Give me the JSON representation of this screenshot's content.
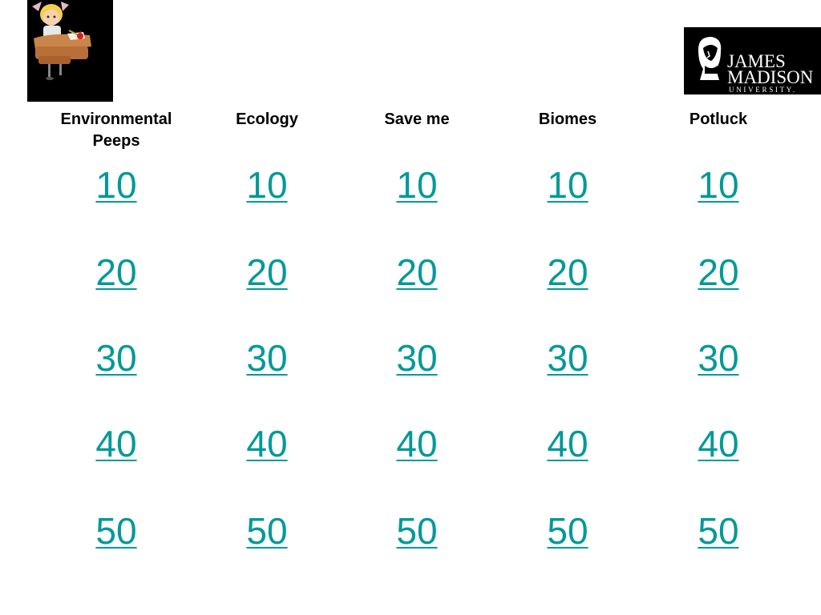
{
  "logo": {
    "line1": "JAMES",
    "line2": "MADISON",
    "line3": "UNIVERSITY."
  },
  "categories": [
    {
      "name": "Environmental Peeps",
      "values": [
        "10",
        "20",
        "30",
        "40",
        "50"
      ]
    },
    {
      "name": "Ecology",
      "values": [
        "10",
        "20",
        "30",
        "40",
        "50"
      ]
    },
    {
      "name": "Save me",
      "values": [
        "10",
        "20",
        "30",
        "40",
        "50"
      ]
    },
    {
      "name": "Biomes",
      "values": [
        "10",
        "20",
        "30",
        "40",
        "50"
      ]
    },
    {
      "name": "Potluck",
      "values": [
        "10",
        "20",
        "30",
        "40",
        "50"
      ]
    }
  ],
  "colors": {
    "link": "#009999",
    "logo_bg": "#000000"
  },
  "icons": {
    "student": "student-at-desk-icon",
    "seal": "madison-portrait-icon"
  }
}
